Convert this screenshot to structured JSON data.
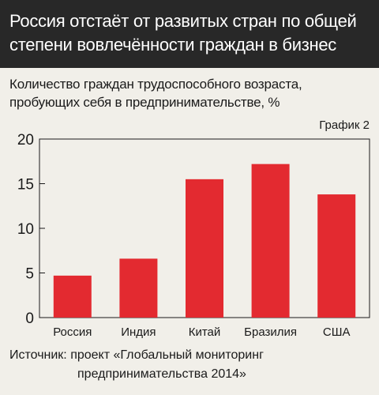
{
  "header": {
    "title_line1": "Россия отстаёт от развитых стран по общей",
    "title_line2": "степени вовлечённости граждан в бизнес"
  },
  "subtitle": {
    "line1": "Количество граждан трудоспособного возраста,",
    "line2": "пробующих себя в предпринимательстве, %"
  },
  "chart_label": "График 2",
  "source": {
    "line1": "Источник: проект «Глобальный мониторинг",
    "line2": "предпринимательства 2014»"
  },
  "colors": {
    "bar": "#e32a30",
    "header_bg": "#282828",
    "background": "#f1efe9"
  },
  "chart_data": {
    "type": "bar",
    "categories": [
      "Россия",
      "Индия",
      "Китай",
      "Бразилия",
      "США"
    ],
    "values": [
      4.7,
      6.6,
      15.5,
      17.2,
      13.8
    ],
    "title": "Россия отстаёт от развитых стран по общей степени вовлечённости граждан в бизнес",
    "subtitle": "Количество граждан трудоспособного возраста, пробующих себя в предпринимательстве, %",
    "xlabel": "",
    "ylabel": "",
    "ylim": [
      0,
      20
    ],
    "yticks": [
      0,
      5,
      10,
      15,
      20
    ],
    "grid": false,
    "legend": "none"
  }
}
